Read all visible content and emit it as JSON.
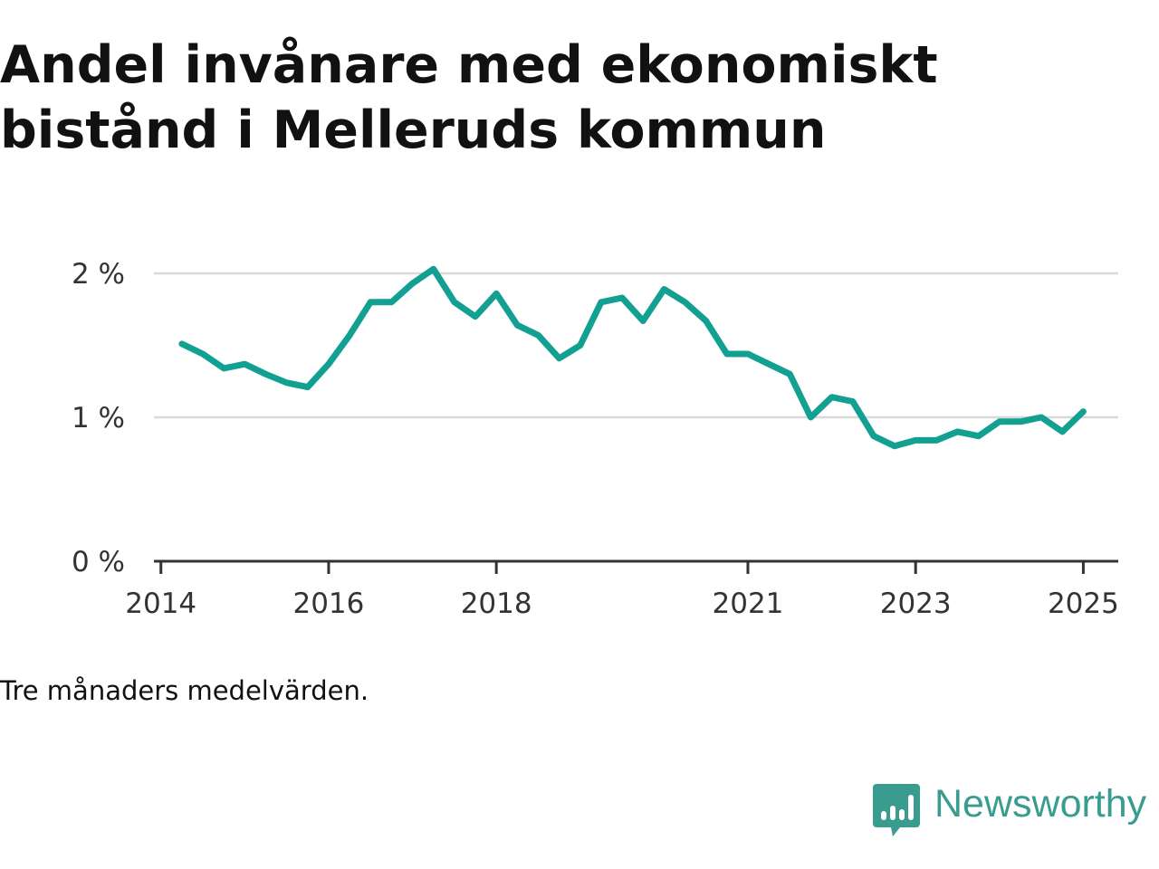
{
  "title": "Andel invånare med ekonomiskt bistånd i Melleruds kommun",
  "note": "Tre månaders medelvärden.",
  "brand": {
    "name": "Newsworthy",
    "icon": "chart-bubble-icon",
    "color": "#3a9c8f"
  },
  "chart_data": {
    "type": "line",
    "title": "Andel invånare med ekonomiskt bistånd i Melleruds kommun",
    "xlabel": "",
    "ylabel": "",
    "ylim": [
      0,
      2
    ],
    "xlim": [
      "2013-12",
      "2025-06"
    ],
    "y_ticks": [
      {
        "value": 0,
        "label": "0 %"
      },
      {
        "value": 1,
        "label": "1 %"
      },
      {
        "value": 2,
        "label": "2 %"
      }
    ],
    "x_ticks": [
      {
        "value": "2014-01",
        "label": "2014"
      },
      {
        "value": "2016-01",
        "label": "2016"
      },
      {
        "value": "2018-01",
        "label": "2018"
      },
      {
        "value": "2021-01",
        "label": "2021"
      },
      {
        "value": "2023-01",
        "label": "2023"
      },
      {
        "value": "2025-01",
        "label": "2025"
      }
    ],
    "grid": true,
    "line_color": "#12a093",
    "series": [
      {
        "x": [
          "2014-04",
          "2014-07",
          "2014-10",
          "2015-01",
          "2015-04",
          "2015-07",
          "2015-10",
          "2016-01",
          "2016-04",
          "2016-07",
          "2016-10",
          "2017-01",
          "2017-04",
          "2017-07",
          "2017-10",
          "2018-01",
          "2018-04",
          "2018-07",
          "2018-10",
          "2019-01",
          "2019-04",
          "2019-07",
          "2019-10",
          "2020-01",
          "2020-04",
          "2020-07",
          "2020-10",
          "2021-01",
          "2021-04",
          "2021-07",
          "2021-10",
          "2022-01",
          "2022-04",
          "2022-07",
          "2022-10",
          "2023-01",
          "2023-04",
          "2023-07",
          "2023-10",
          "2024-01",
          "2024-04",
          "2024-07",
          "2024-10",
          "2025-01"
        ],
        "y": [
          1.51,
          1.44,
          1.34,
          1.37,
          1.3,
          1.24,
          1.21,
          1.37,
          1.57,
          1.8,
          1.8,
          1.93,
          2.03,
          1.8,
          1.7,
          1.86,
          1.64,
          1.57,
          1.41,
          1.5,
          1.8,
          1.83,
          1.67,
          1.89,
          1.8,
          1.67,
          1.44,
          1.44,
          1.37,
          1.3,
          1.0,
          1.14,
          1.11,
          0.87,
          0.8,
          0.84,
          0.84,
          0.9,
          0.87,
          0.97,
          0.97,
          1.0,
          0.9,
          1.04
        ]
      }
    ]
  }
}
